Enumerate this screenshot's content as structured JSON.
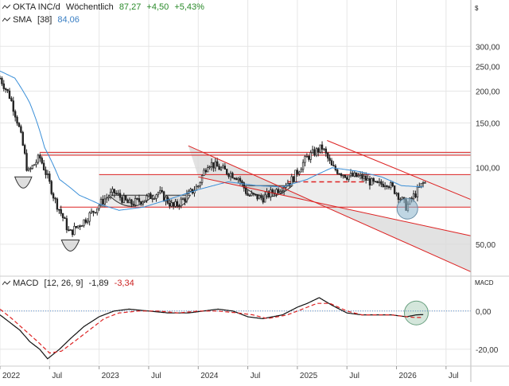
{
  "header": {
    "title": "OKTA INC/d",
    "interval": "Wöchentlich",
    "last": "87,27",
    "change_abs": "+4,50",
    "change_pct": "+5,43%"
  },
  "sma": {
    "label": "SMA",
    "period": "[38]",
    "value": "84,06"
  },
  "macd": {
    "label": "MACD",
    "params": "[12, 26, 9]",
    "value1": "-1,89",
    "value2": "-3,34"
  },
  "currency": "$",
  "macd_axis_title": "MACD",
  "colors": {
    "up": "#ffffff",
    "down": "#222222",
    "sma": "#3a8fd8",
    "trend": "#dd2222",
    "macd": "#111111",
    "signal": "#dd2222",
    "band": "#d8d8d8",
    "grid": "#e6e6e6"
  },
  "chart_data": [
    {
      "type": "candlestick",
      "scale": "log",
      "ylim": [
        38,
        360
      ],
      "xlim": [
        2022.0,
        2026.75
      ],
      "y_ticks": [
        {
          "value": 300,
          "label": "300,00"
        },
        {
          "value": 250,
          "label": "250,00"
        },
        {
          "value": 200,
          "label": "200,00"
        },
        {
          "value": 150,
          "label": "150,00"
        },
        {
          "value": 100,
          "label": "100,00"
        },
        {
          "value": 50,
          "label": "50,00"
        }
      ],
      "x_ticks": [
        {
          "value": 2022.0,
          "label": "2022"
        },
        {
          "value": 2022.5,
          "label": "Jul"
        },
        {
          "value": 2023.0,
          "label": "2023"
        },
        {
          "value": 2023.5,
          "label": "Jul"
        },
        {
          "value": 2024.0,
          "label": "2024"
        },
        {
          "value": 2024.5,
          "label": "Jul"
        },
        {
          "value": 2025.0,
          "label": "2025"
        },
        {
          "value": 2025.5,
          "label": "Jul"
        },
        {
          "value": 2026.0,
          "label": "2026"
        },
        {
          "value": 2026.5,
          "label": "Jul"
        }
      ],
      "price_anchors": [
        [
          2022.0,
          225
        ],
        [
          2022.1,
          190
        ],
        [
          2022.18,
          150
        ],
        [
          2022.28,
          95
        ],
        [
          2022.4,
          110
        ],
        [
          2022.55,
          75
        ],
        [
          2022.7,
          55
        ],
        [
          2022.85,
          62
        ],
        [
          2022.95,
          68
        ],
        [
          2023.05,
          75
        ],
        [
          2023.15,
          80
        ],
        [
          2023.3,
          72
        ],
        [
          2023.45,
          75
        ],
        [
          2023.6,
          80
        ],
        [
          2023.75,
          70
        ],
        [
          2023.85,
          75
        ],
        [
          2024.0,
          85
        ],
        [
          2024.1,
          105
        ],
        [
          2024.25,
          98
        ],
        [
          2024.4,
          92
        ],
        [
          2024.5,
          78
        ],
        [
          2024.65,
          76
        ],
        [
          2024.8,
          82
        ],
        [
          2024.95,
          90
        ],
        [
          2025.1,
          110
        ],
        [
          2025.25,
          120
        ],
        [
          2025.35,
          100
        ],
        [
          2025.5,
          93
        ],
        [
          2025.65,
          92
        ],
        [
          2025.8,
          85
        ],
        [
          2025.9,
          88
        ],
        [
          2026.0,
          80
        ],
        [
          2026.1,
          70
        ],
        [
          2026.18,
          78
        ],
        [
          2026.27,
          87
        ]
      ],
      "sma": [
        [
          2022.0,
          240
        ],
        [
          2022.15,
          225
        ],
        [
          2022.3,
          180
        ],
        [
          2022.45,
          120
        ],
        [
          2022.6,
          90
        ],
        [
          2022.8,
          78
        ],
        [
          2023.0,
          72
        ],
        [
          2023.2,
          68
        ],
        [
          2023.45,
          70
        ],
        [
          2023.7,
          75
        ],
        [
          2024.0,
          82
        ],
        [
          2024.3,
          88
        ],
        [
          2024.6,
          85
        ],
        [
          2024.85,
          84
        ],
        [
          2025.1,
          90
        ],
        [
          2025.35,
          100
        ],
        [
          2025.6,
          97
        ],
        [
          2025.85,
          92
        ],
        [
          2026.05,
          85
        ],
        [
          2026.27,
          84
        ]
      ],
      "horizontal_lines": [
        115,
        112,
        94,
        70
      ],
      "dashed_support": {
        "y": 88,
        "x": [
          2024.9,
          2025.7
        ]
      },
      "channels": [
        {
          "from": [
            2023.9,
            122
          ],
          "to": [
            2026.75,
            39
          ]
        },
        {
          "from": [
            2024.0,
            92
          ],
          "to": [
            2026.75,
            54
          ]
        },
        {
          "from": [
            2025.3,
            128
          ],
          "to": [
            2026.75,
            75
          ]
        }
      ],
      "circle_marker": {
        "x": 2026.11,
        "y": 69
      },
      "rounding_bottoms": [
        {
          "x1": 2022.15,
          "x2": 2022.32,
          "y": 92
        },
        {
          "x1": 2022.62,
          "x2": 2022.8,
          "y": 52
        },
        {
          "x1": 2023.1,
          "x2": 2023.55,
          "y": 78
        },
        {
          "x1": 2023.68,
          "x2": 2023.92,
          "y": 78
        },
        {
          "x1": 2024.45,
          "x2": 2024.95,
          "y": 85
        }
      ]
    },
    {
      "type": "line",
      "title": "MACD",
      "ylim": [
        -28,
        12
      ],
      "y_ticks": [
        {
          "value": 0,
          "label": "0,00"
        },
        {
          "value": -20,
          "label": "-20,00"
        }
      ],
      "series": [
        {
          "name": "MACD",
          "points": [
            [
              2022.0,
              -2
            ],
            [
              2022.1,
              -6
            ],
            [
              2022.2,
              -10
            ],
            [
              2022.3,
              -16
            ],
            [
              2022.4,
              -20
            ],
            [
              2022.48,
              -25
            ],
            [
              2022.6,
              -20
            ],
            [
              2022.72,
              -14
            ],
            [
              2022.85,
              -8
            ],
            [
              2023.0,
              -3
            ],
            [
              2023.15,
              0
            ],
            [
              2023.3,
              1
            ],
            [
              2023.5,
              0
            ],
            [
              2023.7,
              -1
            ],
            [
              2023.9,
              -1
            ],
            [
              2024.05,
              0
            ],
            [
              2024.2,
              1
            ],
            [
              2024.35,
              0
            ],
            [
              2024.5,
              -3
            ],
            [
              2024.65,
              -4
            ],
            [
              2024.85,
              -2
            ],
            [
              2025.0,
              2
            ],
            [
              2025.1,
              4
            ],
            [
              2025.22,
              7
            ],
            [
              2025.35,
              3
            ],
            [
              2025.5,
              -1
            ],
            [
              2025.65,
              -2
            ],
            [
              2025.8,
              -2
            ],
            [
              2025.95,
              -2
            ],
            [
              2026.1,
              -3
            ],
            [
              2026.2,
              -2
            ],
            [
              2026.27,
              -1.89
            ]
          ]
        },
        {
          "name": "Signal",
          "points": [
            [
              2022.0,
              1
            ],
            [
              2022.12,
              -4
            ],
            [
              2022.25,
              -10
            ],
            [
              2022.38,
              -16
            ],
            [
              2022.5,
              -22
            ],
            [
              2022.62,
              -21
            ],
            [
              2022.75,
              -16
            ],
            [
              2022.9,
              -10
            ],
            [
              2023.05,
              -4
            ],
            [
              2023.2,
              -1
            ],
            [
              2023.4,
              0
            ],
            [
              2023.6,
              0
            ],
            [
              2023.8,
              -1
            ],
            [
              2024.0,
              0
            ],
            [
              2024.2,
              0
            ],
            [
              2024.4,
              -1
            ],
            [
              2024.55,
              -2
            ],
            [
              2024.7,
              -4
            ],
            [
              2024.9,
              -2
            ],
            [
              2025.05,
              1
            ],
            [
              2025.2,
              4
            ],
            [
              2025.33,
              4
            ],
            [
              2025.5,
              0
            ],
            [
              2025.65,
              -2
            ],
            [
              2025.8,
              -2
            ],
            [
              2025.95,
              -2
            ],
            [
              2026.1,
              -3
            ],
            [
              2026.2,
              -3.4
            ],
            [
              2026.27,
              -3.34
            ]
          ]
        }
      ],
      "circle_marker": {
        "x": 2026.2,
        "y": -1
      }
    }
  ]
}
